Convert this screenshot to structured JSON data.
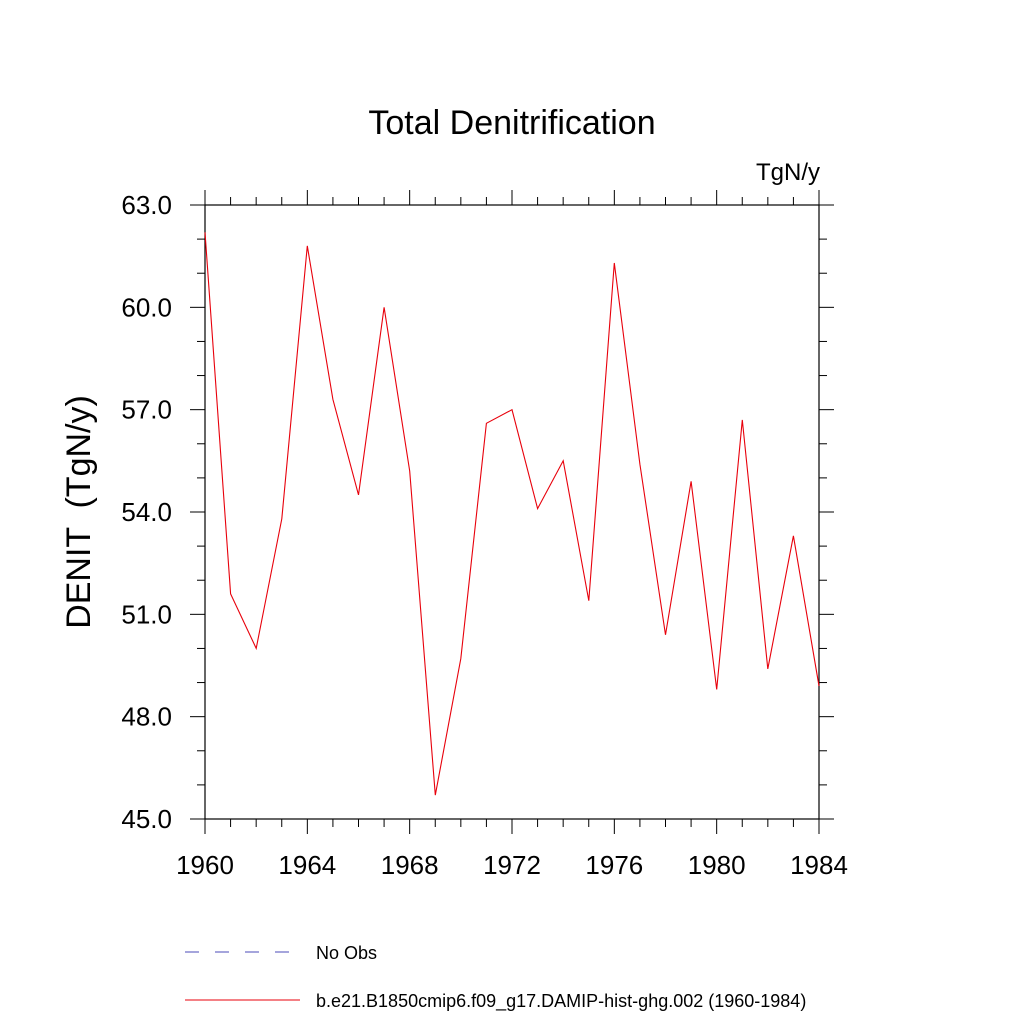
{
  "chart_data": {
    "type": "line",
    "title": "Total Denitrification",
    "units_label": "TgN/y",
    "ylabel": "DENIT  (TgN/y)",
    "xlabel": "",
    "xlim": [
      1960,
      1984
    ],
    "ylim": [
      45.0,
      63.0
    ],
    "x_ticks": [
      "1960",
      "1964",
      "1968",
      "1972",
      "1976",
      "1980",
      "1984"
    ],
    "y_ticks": [
      "45.0",
      "48.0",
      "51.0",
      "54.0",
      "57.0",
      "60.0",
      "63.0"
    ],
    "grid": false,
    "legend_position": "bottom",
    "x": [
      1960,
      1961,
      1962,
      1963,
      1964,
      1965,
      1966,
      1967,
      1968,
      1969,
      1970,
      1971,
      1972,
      1973,
      1974,
      1975,
      1976,
      1977,
      1978,
      1979,
      1980,
      1981,
      1982,
      1983,
      1984
    ],
    "series": [
      {
        "name": "b.e21.B1850cmip6.f09_g17.DAMIP-hist-ghg.002 (1960-1984)",
        "color": "#e8000b",
        "style": "solid",
        "values": [
          62.2,
          51.6,
          50.0,
          53.8,
          61.8,
          57.3,
          54.5,
          60.0,
          55.2,
          45.7,
          49.7,
          56.6,
          57.0,
          54.1,
          55.5,
          51.4,
          61.3,
          55.4,
          50.4,
          54.9,
          48.8,
          56.7,
          49.4,
          53.3,
          48.9
        ]
      }
    ],
    "legend": [
      {
        "label": "No Obs",
        "color": "#4b4bb8",
        "style": "dashed"
      },
      {
        "label": "b.e21.B1850cmip6.f09_g17.DAMIP-hist-ghg.002 (1960-1984)",
        "color": "#e8000b",
        "style": "solid"
      }
    ]
  }
}
